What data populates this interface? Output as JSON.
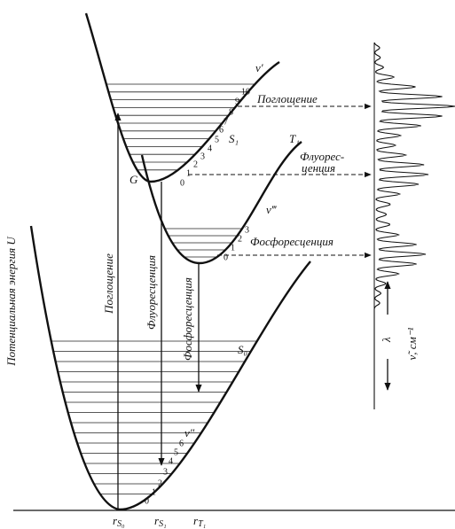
{
  "axis_label": "Потенциальная энергия U",
  "states": {
    "S0": "S₀",
    "S1": "S₁",
    "T1": "T₁",
    "G": "G"
  },
  "vibrational": {
    "S0": "v″",
    "S1": "v′",
    "T1": "v‴"
  },
  "levels": {
    "S1": [
      "0",
      "1",
      "2",
      "3",
      "4",
      "5",
      "6",
      "7",
      "8",
      "9",
      "10"
    ],
    "T1": [
      "0",
      "1",
      "2",
      "3"
    ],
    "S0": [
      "0",
      "1",
      "2",
      "3",
      "4",
      "5",
      "6"
    ]
  },
  "transitions": {
    "absorption": "Поглощение",
    "fluorescence": "Флуоресценция",
    "phosphorescence": "Фосфоресценция"
  },
  "spectrum": {
    "absorption": "Поглощение",
    "fluorescence": [
      "Флуорес-",
      "ценция"
    ],
    "phosphorescence": "Фосфоресценция",
    "wavenumber": "ν̃, см⁻¹",
    "wavelength": "λ"
  },
  "distances": [
    {
      "symbol": "r",
      "sub": "S₀"
    },
    {
      "symbol": "r",
      "sub": "S₁"
    },
    {
      "symbol": "r",
      "sub": "T₁"
    }
  ]
}
